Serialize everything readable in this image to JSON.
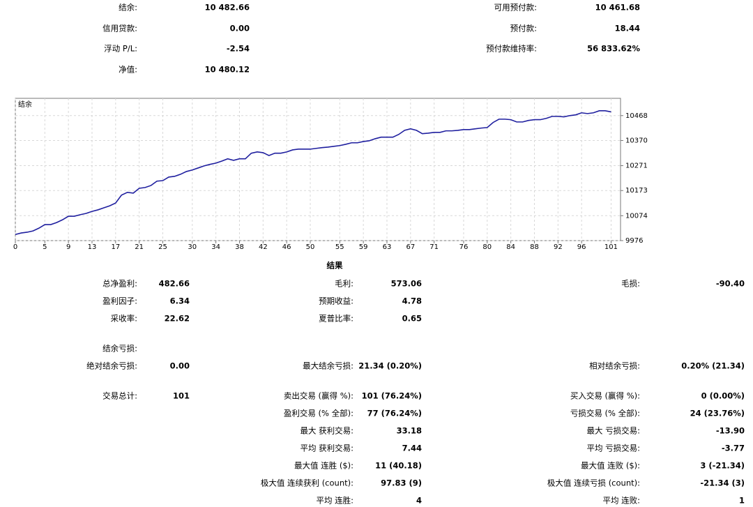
{
  "summary": {
    "left": [
      [
        "结余:",
        "10 482.66"
      ],
      [
        "信用贷款:",
        "0.00"
      ],
      [
        "浮动 P/L:",
        "-2.54"
      ],
      [
        "净值:",
        "10 480.12"
      ]
    ],
    "right": [
      [
        "可用预付款:",
        "10 461.68"
      ],
      [
        "预付款:",
        "18.44"
      ],
      [
        "预付款维持率:",
        "56 833.62%"
      ]
    ]
  },
  "chart_data": {
    "type": "line",
    "x": [
      0,
      1,
      2,
      3,
      4,
      5,
      6,
      7,
      8,
      9,
      10,
      11,
      12,
      13,
      14,
      15,
      16,
      17,
      18,
      19,
      20,
      21,
      22,
      23,
      24,
      25,
      26,
      27,
      28,
      29,
      30,
      31,
      32,
      33,
      34,
      35,
      36,
      37,
      38,
      39,
      40,
      41,
      42,
      43,
      44,
      45,
      46,
      47,
      48,
      49,
      50,
      51,
      52,
      53,
      54,
      55,
      56,
      57,
      58,
      59,
      60,
      61,
      62,
      63,
      64,
      65,
      66,
      67,
      68,
      69,
      70,
      71,
      72,
      73,
      74,
      75,
      76,
      77,
      78,
      79,
      80,
      81,
      82,
      83,
      84,
      85,
      86,
      87,
      88,
      89,
      90,
      91,
      92,
      93,
      94,
      95,
      96,
      97,
      98,
      99,
      100,
      101
    ],
    "series": [
      {
        "name": "结余",
        "color": "#1f1f9f",
        "values": [
          10000,
          10006,
          10009,
          10014,
          10025,
          10039,
          10039,
          10047,
          10058,
          10072,
          10072,
          10078,
          10083,
          10091,
          10097,
          10105,
          10113,
          10124,
          10155,
          10166,
          10163,
          10182,
          10185,
          10193,
          10210,
          10212,
          10226,
          10229,
          10237,
          10248,
          10254,
          10262,
          10270,
          10276,
          10281,
          10289,
          10298,
          10292,
          10298,
          10298,
          10320,
          10325,
          10322,
          10311,
          10320,
          10320,
          10325,
          10333,
          10336,
          10336,
          10336,
          10339,
          10342,
          10344,
          10347,
          10350,
          10355,
          10361,
          10361,
          10366,
          10369,
          10377,
          10383,
          10383,
          10383,
          10394,
          10410,
          10416,
          10410,
          10397,
          10399,
          10402,
          10402,
          10408,
          10408,
          10410,
          10413,
          10413,
          10416,
          10419,
          10421,
          10441,
          10454,
          10454,
          10452,
          10443,
          10443,
          10449,
          10452,
          10452,
          10457,
          10465,
          10465,
          10463,
          10468,
          10471,
          10479,
          10476,
          10479,
          10487,
          10487,
          10482.66
        ]
      }
    ],
    "xlim": [
      0,
      102.6
    ],
    "xticks": [
      0,
      5,
      9,
      13,
      17,
      21,
      25,
      30,
      34,
      38,
      42,
      46,
      50,
      55,
      59,
      63,
      67,
      71,
      76,
      80,
      84,
      88,
      92,
      96,
      101
    ],
    "ylim": [
      9976,
      10536
    ],
    "yticks": [
      9976,
      10074,
      10173,
      10271,
      10370,
      10468
    ],
    "grid": true
  },
  "results": {
    "title": "结果",
    "rows": [
      [
        {
          "label": "总净盈利:",
          "value": "482.66"
        },
        {
          "label": "毛利:",
          "value": "573.06"
        },
        {
          "label": "毛损:",
          "value": "-90.40"
        }
      ],
      [
        {
          "label": "盈利因子:",
          "value": "6.34"
        },
        {
          "label": "预期收益:",
          "value": "4.78"
        },
        null
      ],
      [
        {
          "label": "采收率:",
          "value": "22.62"
        },
        {
          "label": "夏普比率:",
          "value": "0.65"
        },
        null
      ],
      [
        {
          "label": "结余亏损:"
        },
        null,
        null
      ],
      [
        {
          "label": "绝对结余亏损:",
          "value": "0.00"
        },
        {
          "label": "最大结余亏损:",
          "value": "21.34 (0.20%)"
        },
        {
          "label": "相对结余亏损:",
          "value": "0.20% (21.34)"
        }
      ],
      [
        {
          "label": "交易总计:",
          "value": "101"
        },
        {
          "label": "卖出交易 (赢得 %):",
          "value": "101 (76.24%)"
        },
        {
          "label": "买入交易 (赢得 %):",
          "value": "0 (0.00%)"
        }
      ],
      [
        null,
        {
          "label": "盈利交易 (% 全部):",
          "value": "77 (76.24%)"
        },
        {
          "label": "亏损交易 (% 全部):",
          "value": "24 (23.76%)"
        }
      ],
      [
        null,
        {
          "label": "最大 获利交易:",
          "value": "33.18"
        },
        {
          "label": "最大 亏损交易:",
          "value": "-13.90"
        }
      ],
      [
        null,
        {
          "label": "平均 获利交易:",
          "value": "7.44"
        },
        {
          "label": "平均 亏损交易:",
          "value": "-3.77"
        }
      ],
      [
        null,
        {
          "label": "最大值 连胜 ($):",
          "value": "11 (40.18)"
        },
        {
          "label": "最大值 连败 ($):",
          "value": "3 (-21.34)"
        }
      ],
      [
        null,
        {
          "label": "极大值 连续获利 (count):",
          "value": "97.83 (9)"
        },
        {
          "label": "极大值 连续亏损 (count):",
          "value": "-21.34 (3)"
        }
      ],
      [
        null,
        {
          "label": "平均 连胜:",
          "value": "4"
        },
        {
          "label": "平均 连败:",
          "value": "1"
        }
      ]
    ]
  }
}
